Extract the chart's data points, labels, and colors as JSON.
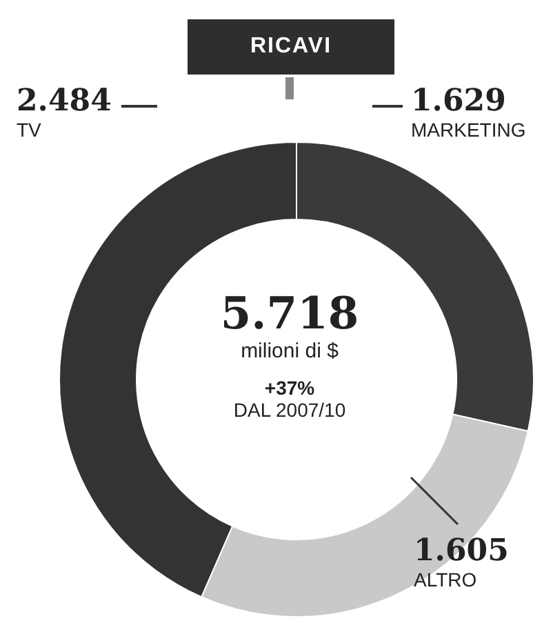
{
  "chart_data": {
    "type": "donut",
    "title": "RICAVI",
    "categories": [
      "MARKETING",
      "ALTRO",
      "TV"
    ],
    "values": [
      1629,
      1605,
      2484
    ],
    "value_labels": [
      "1.629",
      "1.605",
      "2.484"
    ],
    "colors": [
      "#3a3a3a",
      "#c9c9c7",
      "#333333"
    ],
    "annotations": [
      "5.718",
      "milioni di $",
      "+37%",
      "DAL 2007/10"
    ],
    "legend": false
  }
}
